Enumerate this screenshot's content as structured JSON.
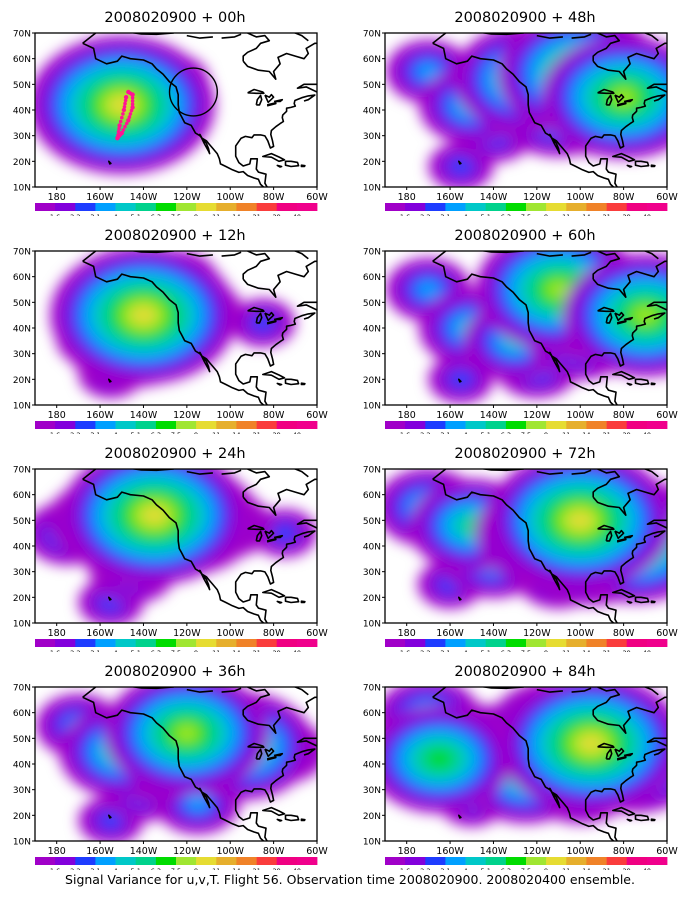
{
  "figure": {
    "caption": "Signal Variance for u,v,T. Flight 56. Observation time 2008020900. 2008020400 ensemble."
  },
  "axes": {
    "lon_ticks": [
      "180",
      "160W",
      "140W",
      "120W",
      "100W",
      "80W",
      "60W"
    ],
    "lat_ticks": [
      "70N",
      "60N",
      "50N",
      "40N",
      "30N",
      "20N",
      "10N"
    ]
  },
  "colorbar": {
    "labels": [
      "1.6",
      "2.2",
      "3.1",
      "4",
      "5.1",
      "6.3",
      "7.5",
      "9",
      "11",
      "14",
      "21",
      "29",
      "40"
    ],
    "colors": [
      "#a000c8",
      "#8200dc",
      "#1e3cff",
      "#00a0ff",
      "#00c8c8",
      "#00d28c",
      "#00dc00",
      "#a0e632",
      "#e6dc32",
      "#e6af2d",
      "#f08228",
      "#fa3c3c",
      "#f00082",
      "#f0008c"
    ]
  },
  "chart_data": [
    {
      "type": "heatmap",
      "title": "2008020900 + 00h",
      "xlim": [
        "180",
        "60W"
      ],
      "ylim": [
        "10N",
        "70N"
      ],
      "blobs": [
        {
          "lon": -150,
          "lat": 42,
          "level": 8
        },
        {
          "lon": -155,
          "lat": 48,
          "level": 5
        },
        {
          "lon": -165,
          "lat": 45,
          "level": 3
        },
        {
          "lon": -140,
          "lat": 55,
          "level": 3
        },
        {
          "lon": -125,
          "lat": 52,
          "level": 2
        },
        {
          "lon": -175,
          "lat": 45,
          "level": 2
        },
        {
          "lon": -155,
          "lat": 28,
          "level": 3
        }
      ],
      "flight_track": [
        [
          -147,
          47
        ],
        [
          -145,
          46
        ],
        [
          -145,
          41
        ],
        [
          -147,
          36
        ],
        [
          -150,
          31
        ],
        [
          -152,
          29
        ],
        [
          -151,
          34
        ],
        [
          -149,
          40
        ],
        [
          -148,
          45
        ]
      ],
      "observation_circle": {
        "lon": -117,
        "lat": 47,
        "radius_deg": 11
      }
    },
    {
      "type": "heatmap",
      "title": "2008020900 + 48h",
      "xlim": [
        "180",
        "60W"
      ],
      "ylim": [
        "10N",
        "70N"
      ],
      "blobs": [
        {
          "lon": -150,
          "lat": 42,
          "level": 4
        },
        {
          "lon": -125,
          "lat": 52,
          "level": 6
        },
        {
          "lon": -100,
          "lat": 54,
          "level": 7
        },
        {
          "lon": -80,
          "lat": 45,
          "level": 7
        },
        {
          "lon": -170,
          "lat": 55,
          "level": 3
        },
        {
          "lon": -140,
          "lat": 32,
          "level": 3
        },
        {
          "lon": -110,
          "lat": 40,
          "level": 5
        },
        {
          "lon": -95,
          "lat": 35,
          "level": 3
        },
        {
          "lon": -155,
          "lat": 18,
          "level": 2
        }
      ]
    },
    {
      "type": "heatmap",
      "title": "2008020900 + 12h",
      "xlim": [
        "180",
        "60W"
      ],
      "ylim": [
        "10N",
        "70N"
      ],
      "blobs": [
        {
          "lon": -140,
          "lat": 45,
          "level": 8
        },
        {
          "lon": -145,
          "lat": 38,
          "level": 6
        },
        {
          "lon": -160,
          "lat": 50,
          "level": 3
        },
        {
          "lon": -125,
          "lat": 58,
          "level": 3
        },
        {
          "lon": -165,
          "lat": 35,
          "level": 2
        },
        {
          "lon": -155,
          "lat": 22,
          "level": 2
        },
        {
          "lon": -110,
          "lat": 48,
          "level": 2
        },
        {
          "lon": -85,
          "lat": 42,
          "level": 2
        }
      ]
    },
    {
      "type": "heatmap",
      "title": "2008020900 + 60h",
      "xlim": [
        "180",
        "60W"
      ],
      "ylim": [
        "10N",
        "70N"
      ],
      "blobs": [
        {
          "lon": -110,
          "lat": 55,
          "level": 7
        },
        {
          "lon": -95,
          "lat": 48,
          "level": 6
        },
        {
          "lon": -70,
          "lat": 45,
          "level": 7
        },
        {
          "lon": -150,
          "lat": 40,
          "level": 4
        },
        {
          "lon": -170,
          "lat": 55,
          "level": 3
        },
        {
          "lon": -130,
          "lat": 35,
          "level": 4
        },
        {
          "lon": -100,
          "lat": 35,
          "level": 4
        },
        {
          "lon": -155,
          "lat": 20,
          "level": 2
        },
        {
          "lon": -120,
          "lat": 25,
          "level": 3
        }
      ]
    },
    {
      "type": "heatmap",
      "title": "2008020900 + 24h",
      "xlim": [
        "180",
        "60W"
      ],
      "ylim": [
        "10N",
        "70N"
      ],
      "blobs": [
        {
          "lon": -135,
          "lat": 52,
          "level": 8
        },
        {
          "lon": -140,
          "lat": 45,
          "level": 6
        },
        {
          "lon": -120,
          "lat": 50,
          "level": 6
        },
        {
          "lon": -160,
          "lat": 50,
          "level": 4
        },
        {
          "lon": -175,
          "lat": 45,
          "level": 3
        },
        {
          "lon": -145,
          "lat": 30,
          "level": 3
        },
        {
          "lon": -155,
          "lat": 18,
          "level": 2
        },
        {
          "lon": -100,
          "lat": 48,
          "level": 3
        },
        {
          "lon": -75,
          "lat": 45,
          "level": 2
        }
      ]
    },
    {
      "type": "heatmap",
      "title": "2008020900 + 72h",
      "xlim": [
        "180",
        "60W"
      ],
      "ylim": [
        "10N",
        "70N"
      ],
      "blobs": [
        {
          "lon": -100,
          "lat": 50,
          "level": 8
        },
        {
          "lon": -115,
          "lat": 45,
          "level": 6
        },
        {
          "lon": -75,
          "lat": 42,
          "level": 7
        },
        {
          "lon": -150,
          "lat": 48,
          "level": 5
        },
        {
          "lon": -170,
          "lat": 55,
          "level": 4
        },
        {
          "lon": -140,
          "lat": 35,
          "level": 4
        },
        {
          "lon": -110,
          "lat": 28,
          "level": 3
        },
        {
          "lon": -160,
          "lat": 25,
          "level": 2
        },
        {
          "lon": -95,
          "lat": 35,
          "level": 5
        }
      ]
    },
    {
      "type": "heatmap",
      "title": "2008020900 + 36h",
      "xlim": [
        "180",
        "60W"
      ],
      "ylim": [
        "10N",
        "70N"
      ],
      "blobs": [
        {
          "lon": -120,
          "lat": 52,
          "level": 7
        },
        {
          "lon": -95,
          "lat": 47,
          "level": 6
        },
        {
          "lon": -150,
          "lat": 45,
          "level": 5
        },
        {
          "lon": -135,
          "lat": 40,
          "level": 4
        },
        {
          "lon": -170,
          "lat": 55,
          "level": 3
        },
        {
          "lon": -140,
          "lat": 30,
          "level": 3
        },
        {
          "lon": -155,
          "lat": 18,
          "level": 2
        },
        {
          "lon": -115,
          "lat": 25,
          "level": 3
        },
        {
          "lon": -75,
          "lat": 45,
          "level": 3
        }
      ]
    },
    {
      "type": "heatmap",
      "title": "2008020900 + 84h",
      "xlim": [
        "180",
        "60W"
      ],
      "ylim": [
        "10N",
        "70N"
      ],
      "blobs": [
        {
          "lon": -95,
          "lat": 48,
          "level": 8
        },
        {
          "lon": -110,
          "lat": 52,
          "level": 6
        },
        {
          "lon": -165,
          "lat": 42,
          "level": 6
        },
        {
          "lon": -145,
          "lat": 45,
          "level": 5
        },
        {
          "lon": -75,
          "lat": 42,
          "level": 6
        },
        {
          "lon": -125,
          "lat": 35,
          "level": 5
        },
        {
          "lon": -170,
          "lat": 58,
          "level": 4
        },
        {
          "lon": -100,
          "lat": 32,
          "level": 4
        },
        {
          "lon": -150,
          "lat": 25,
          "level": 2
        }
      ]
    }
  ]
}
